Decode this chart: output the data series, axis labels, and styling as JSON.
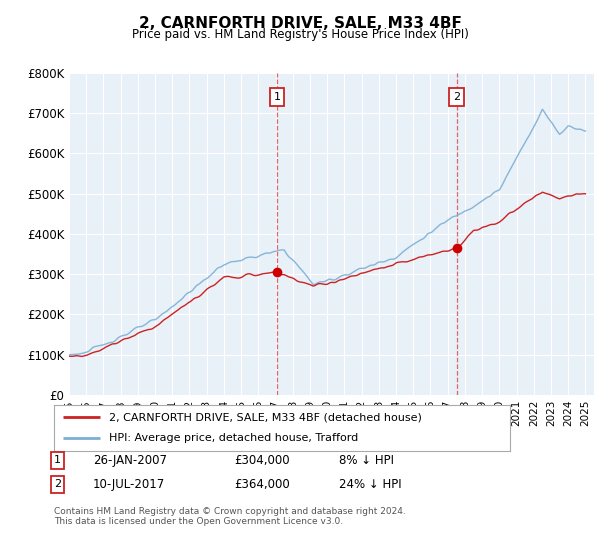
{
  "title": "2, CARNFORTH DRIVE, SALE, M33 4BF",
  "subtitle": "Price paid vs. HM Land Registry's House Price Index (HPI)",
  "ylabel_ticks": [
    "£0",
    "£100K",
    "£200K",
    "£300K",
    "£400K",
    "£500K",
    "£600K",
    "£700K",
    "£800K"
  ],
  "ylim": [
    0,
    800000
  ],
  "yticks": [
    0,
    100000,
    200000,
    300000,
    400000,
    500000,
    600000,
    700000,
    800000
  ],
  "hpi_color": "#7bafd4",
  "price_color": "#cc2222",
  "dot_color": "#cc0000",
  "marker1_year": 2007.08,
  "marker1_value": 304000,
  "marker2_year": 2017.53,
  "marker2_value": 364000,
  "legend_label1": "2, CARNFORTH DRIVE, SALE, M33 4BF (detached house)",
  "legend_label2": "HPI: Average price, detached house, Trafford",
  "footnote_label1": "26-JAN-2007",
  "footnote_price1": "£304,000",
  "footnote_hpi1": "8% ↓ HPI",
  "footnote_label2": "10-JUL-2017",
  "footnote_price2": "£364,000",
  "footnote_hpi2": "24% ↓ HPI",
  "copyright": "Contains HM Land Registry data © Crown copyright and database right 2024.\nThis data is licensed under the Open Government Licence v3.0.",
  "fig_bg": "#ffffff",
  "plot_bg": "#e8f0f8"
}
